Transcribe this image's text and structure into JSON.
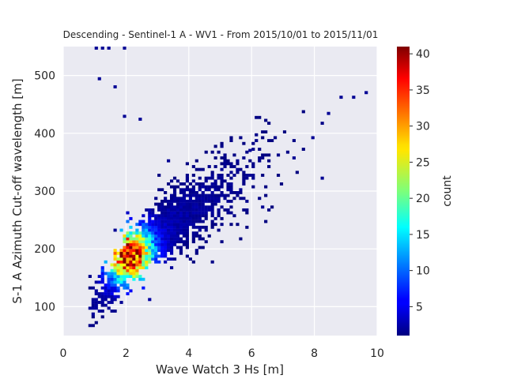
{
  "chart_data": {
    "type": "heatmap",
    "title": "Descending - Sentinel-1 A - WV1 - From 2015/10/01 to 2015/11/01",
    "xlabel": "Wave Watch 3 Hs [m]",
    "ylabel": "S-1 A Azimuth Cut-off wavelength [m]",
    "xlim": [
      0,
      10
    ],
    "ylim": [
      50,
      550
    ],
    "xticks": [
      "0",
      "2",
      "4",
      "6",
      "8",
      "10"
    ],
    "xtick_values": [
      0,
      2,
      4,
      6,
      8,
      10
    ],
    "yticks": [
      "100",
      "200",
      "300",
      "400",
      "500"
    ],
    "ytick_values": [
      100,
      200,
      300,
      400,
      500
    ],
    "grid": true,
    "colorbar": {
      "label": "count",
      "range": [
        1,
        41
      ],
      "ticks": [
        "5",
        "10",
        "15",
        "20",
        "25",
        "30",
        "35",
        "40"
      ],
      "tick_values": [
        5,
        10,
        15,
        20,
        25,
        30,
        35,
        40
      ],
      "colormap": "jet"
    },
    "density_model": {
      "trend": [
        [
          0.8,
          90
        ],
        [
          2.0,
          175
        ],
        [
          3.0,
          225
        ],
        [
          4.0,
          265
        ],
        [
          5.0,
          300
        ],
        [
          6.0,
          330
        ],
        [
          7.0,
          370
        ],
        [
          8.0,
          400
        ],
        [
          9.5,
          460
        ]
      ],
      "peak": {
        "x": 2.1,
        "y": 190,
        "count": 41
      }
    }
  },
  "colors": {
    "background": "#eaeaf2",
    "grid": "#ffffff",
    "text": "#262626"
  }
}
